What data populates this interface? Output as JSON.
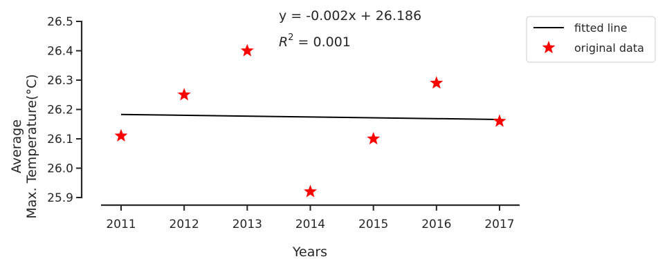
{
  "chart_data": {
    "type": "scatter",
    "title": "",
    "xlabel": "Years",
    "ylabel_lines": [
      "Average",
      "Max. Temperature(°C)"
    ],
    "x_ticks": [
      "2011",
      "2012",
      "2013",
      "2014",
      "2015",
      "2016",
      "2017"
    ],
    "y_ticks": [
      "25.9",
      "26.0",
      "26.1",
      "26.2",
      "26.3",
      "26.4",
      "26.5"
    ],
    "ylim": [
      25.9,
      26.5
    ],
    "xlim": [
      2011,
      2017
    ],
    "grid": false,
    "legend_position": "right, outside top",
    "series": [
      {
        "name": "fitted line",
        "kind": "line",
        "color": "#000000",
        "x": [
          2011,
          2017
        ],
        "y": [
          26.183,
          26.166
        ]
      },
      {
        "name": "original data",
        "kind": "scatter",
        "marker": "star",
        "color": "#ff0000",
        "x": [
          2011,
          2012,
          2013,
          2014,
          2015,
          2016,
          2017
        ],
        "y": [
          26.11,
          26.25,
          26.4,
          25.92,
          26.1,
          26.29,
          26.16
        ]
      }
    ],
    "annotations": {
      "equation": "y = -0.002x + 26.186",
      "r2_label": "R",
      "r2_exp": "2",
      "r2_value": " = 0.001"
    }
  }
}
